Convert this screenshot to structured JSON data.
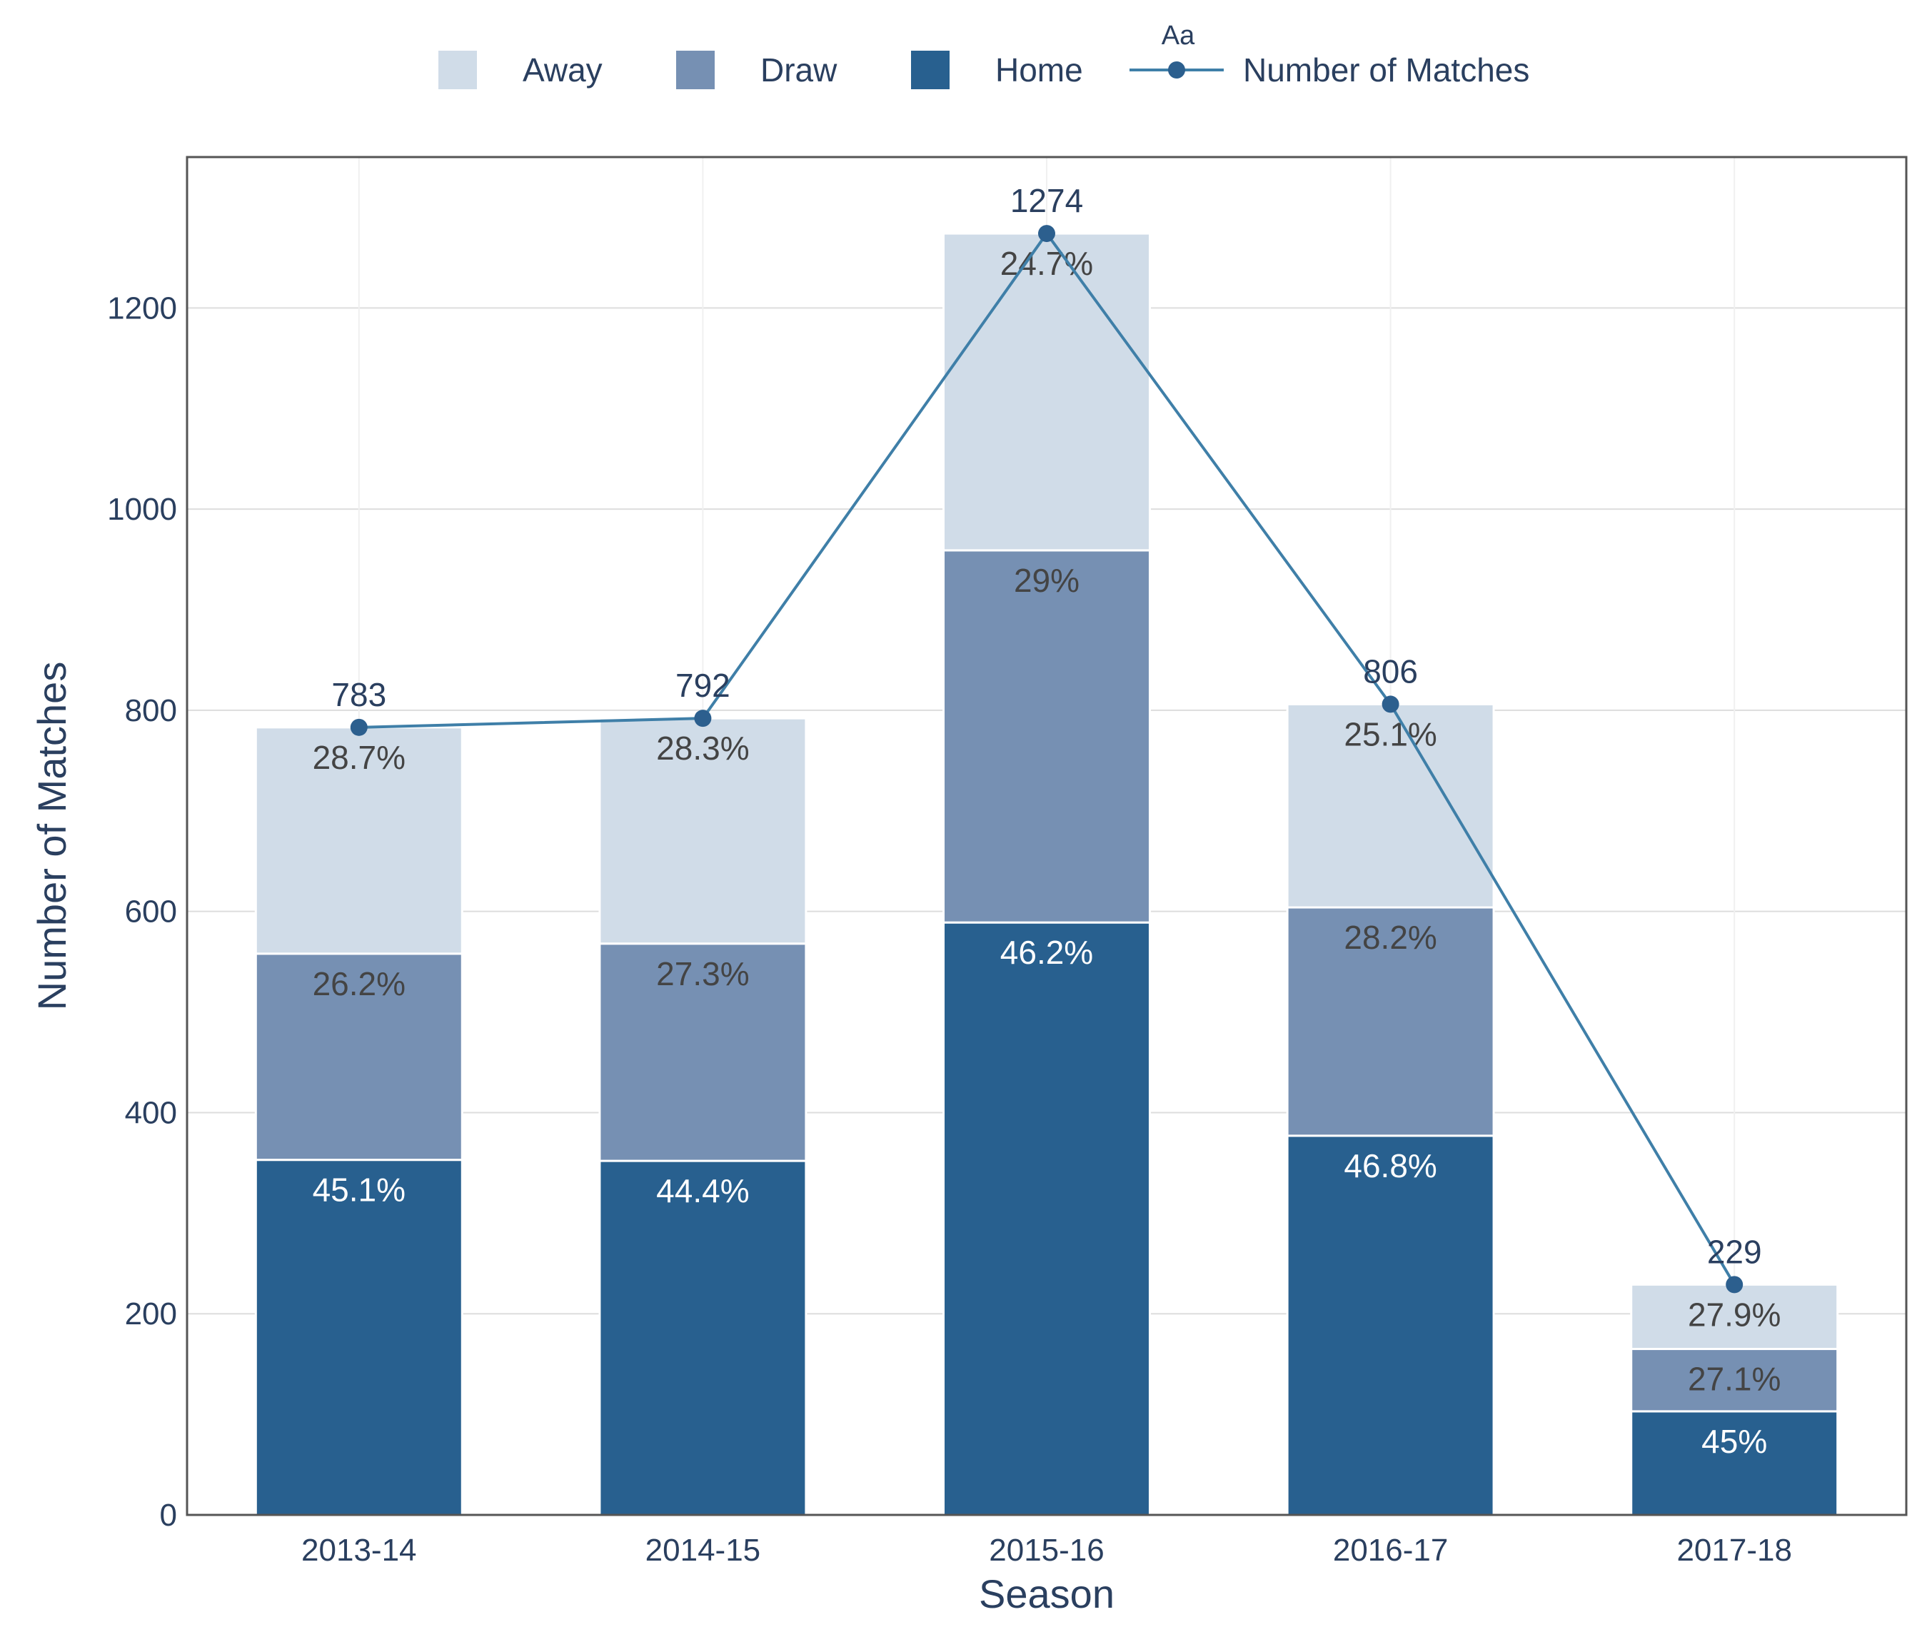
{
  "colors": {
    "away": "#d0dce8",
    "draw": "#7690b3",
    "home": "#28608f",
    "line": "#3f7fa8",
    "marker": "#2c5f8e",
    "text": "#2a3f5f",
    "label_dark": "#444444",
    "label_light": "#ffffff",
    "grid": "#dddddd",
    "axis": "#555555"
  },
  "chart_data": {
    "type": "bar",
    "stacked": true,
    "title": "",
    "xlabel": "Season",
    "ylabel": "Number of Matches",
    "categories": [
      "2013-14",
      "2014-15",
      "2015-16",
      "2016-17",
      "2017-18"
    ],
    "ylim": [
      0,
      1350
    ],
    "yticks": [
      0,
      200,
      400,
      600,
      800,
      1000,
      1200
    ],
    "grid": true,
    "legend_position": "top-center",
    "legend_title": "Aa",
    "series": [
      {
        "name": "Home",
        "key": "home",
        "values": [
          353,
          352,
          589,
          377,
          103
        ],
        "labels": [
          "45.1%",
          "44.4%",
          "46.2%",
          "46.8%",
          "45%"
        ]
      },
      {
        "name": "Draw",
        "key": "draw",
        "values": [
          205,
          216,
          370,
          227,
          62
        ],
        "labels": [
          "26.2%",
          "27.3%",
          "29%",
          "28.2%",
          "27.1%"
        ]
      },
      {
        "name": "Away",
        "key": "away",
        "values": [
          225,
          224,
          315,
          202,
          64
        ],
        "labels": [
          "28.7%",
          "28.3%",
          "24.7%",
          "25.1%",
          "27.9%"
        ]
      }
    ],
    "line": {
      "name": "Number of Matches",
      "values": [
        783,
        792,
        1274,
        806,
        229
      ],
      "labels": [
        "783",
        "792",
        "1274",
        "806",
        "229"
      ]
    },
    "legend": [
      {
        "name": "Away",
        "key": "away",
        "kind": "bar"
      },
      {
        "name": "Draw",
        "key": "draw",
        "kind": "bar"
      },
      {
        "name": "Home",
        "key": "home",
        "kind": "bar"
      },
      {
        "name": "Number of Matches",
        "key": "line",
        "kind": "line"
      }
    ]
  }
}
